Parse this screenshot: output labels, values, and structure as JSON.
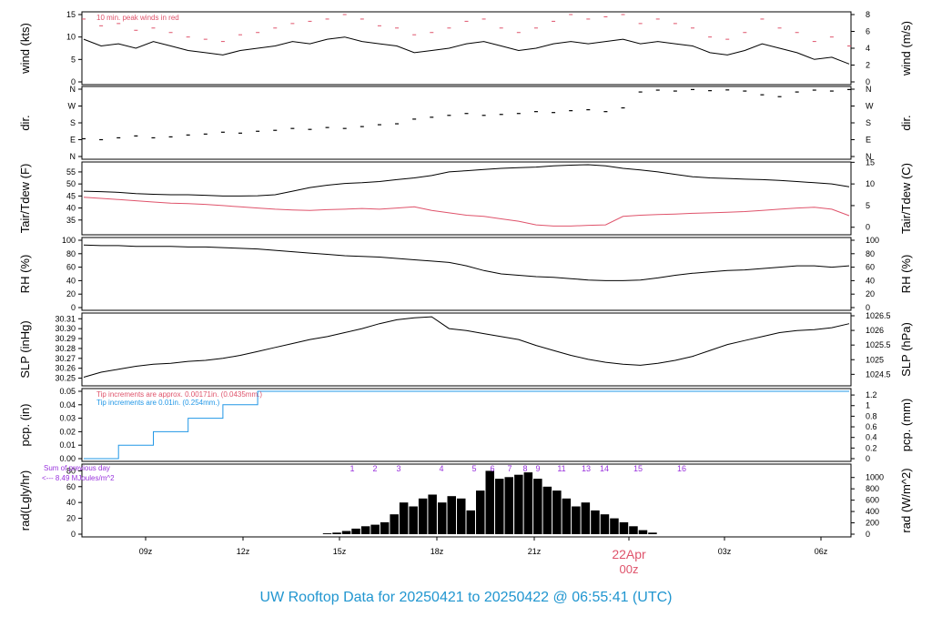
{
  "title": "UW Rooftop Data for 20250421  to  20250422 @ 06:55:41  (UTC)",
  "colors": {
    "frame": "#000000",
    "series_black": "#000000",
    "series_red": "#df536b",
    "series_blue": "#2297e6",
    "annotation_purple": "#9933dd",
    "date_marker": "#df536b",
    "title": "#2196d0"
  },
  "time_axis": {
    "tick_labels": [
      "09z",
      "12z",
      "15z",
      "18z",
      "21z",
      "00z",
      "03z",
      "06z"
    ],
    "date_label": "22Apr"
  },
  "chart_data": [
    {
      "type": "line",
      "panel": "wind",
      "ylabel": "wind (kts)",
      "y2label": "wind (m/s)",
      "ylim": [
        0,
        15
      ],
      "y_ticks": [
        "0",
        "5",
        "10",
        "15"
      ],
      "y2_ticks": [
        "0",
        "2",
        "4",
        "6",
        "8"
      ],
      "annotation": "10 min. peak winds in red",
      "series": [
        {
          "values": [
            9.5,
            8.0,
            8.5,
            7.5,
            9.0,
            8.0,
            7.0,
            6.5,
            6.0,
            7.0,
            7.5,
            8.0,
            9.0,
            8.5,
            9.5,
            10.0,
            9.0,
            8.5,
            8.0,
            6.5,
            7.0,
            7.5,
            8.5,
            9.0,
            8.0,
            7.0,
            7.5,
            8.5,
            9.0,
            8.5,
            9.0,
            9.5,
            8.5,
            9.0,
            8.5,
            8.0,
            6.5,
            6.0,
            7.0,
            8.5,
            7.5,
            6.5,
            5.0,
            5.5,
            4.0
          ]
        },
        {
          "values": [
            14,
            12.5,
            13,
            11.5,
            12,
            11,
            10,
            9.5,
            9,
            10.5,
            11,
            12,
            13,
            13.5,
            14,
            15,
            14,
            12.5,
            12,
            10.5,
            11,
            12,
            13.5,
            14,
            12,
            11,
            12,
            13.5,
            15,
            14,
            14.5,
            15,
            13,
            14,
            13,
            12,
            10,
            9.5,
            11,
            14,
            12,
            11,
            9,
            10,
            8
          ]
        }
      ]
    },
    {
      "type": "scatter",
      "panel": "direction",
      "ylabel": "dir.",
      "y2label": "dir.",
      "y_ticks": [
        "N",
        "E",
        "S",
        "W",
        "N"
      ],
      "series": [
        {
          "values": [
            95,
            90,
            100,
            110,
            100,
            105,
            115,
            120,
            130,
            125,
            135,
            140,
            150,
            145,
            155,
            150,
            160,
            170,
            175,
            200,
            210,
            220,
            230,
            220,
            225,
            230,
            240,
            235,
            245,
            250,
            240,
            260,
            345,
            355,
            350,
            358,
            352,
            356,
            350,
            330,
            320,
            345,
            355,
            350,
            358
          ]
        }
      ]
    },
    {
      "type": "line",
      "panel": "temperature",
      "ylabel": "Tair/Tdew (F)",
      "y2label": "Tair/Tdew (C)",
      "ylim": [
        30,
        58
      ],
      "y_ticks": [
        "35",
        "40",
        "45",
        "50",
        "55"
      ],
      "y2_ticks": [
        "0",
        "5",
        "10",
        "15"
      ],
      "series": [
        {
          "values": [
            47.0,
            46.8,
            46.5,
            46.0,
            45.7,
            45.5,
            45.5,
            45.3,
            45.0,
            45.0,
            45.1,
            45.5,
            47.0,
            48.5,
            49.5,
            50.2,
            50.5,
            51.0,
            51.8,
            52.5,
            53.5,
            55.0,
            55.5,
            56.0,
            56.5,
            56.8,
            57.0,
            57.5,
            57.8,
            58.0,
            57.5,
            56.5,
            55.8,
            55.0,
            54.0,
            53.0,
            52.5,
            52.3,
            52.0,
            51.8,
            51.5,
            51.0,
            50.5,
            50.0,
            48.8
          ]
        },
        {
          "values": [
            44.5,
            44.0,
            43.5,
            43.0,
            42.5,
            42.0,
            41.8,
            41.5,
            41.0,
            40.5,
            40.0,
            39.5,
            39.2,
            39.0,
            39.3,
            39.5,
            39.8,
            39.5,
            40.0,
            40.5,
            39.0,
            38.0,
            37.0,
            36.5,
            35.5,
            34.5,
            33.0,
            32.5,
            32.5,
            32.8,
            33.0,
            36.5,
            37.0,
            37.3,
            37.5,
            37.8,
            38.0,
            38.2,
            38.5,
            39.0,
            39.5,
            40.0,
            40.3,
            39.5,
            36.8
          ]
        }
      ]
    },
    {
      "type": "line",
      "panel": "relative_humidity",
      "ylabel": "RH (%)",
      "y2label": "RH (%)",
      "ylim": [
        0,
        100
      ],
      "y_ticks": [
        "0",
        "20",
        "40",
        "60",
        "80",
        "100"
      ],
      "series": [
        {
          "values": [
            93,
            92,
            92,
            91,
            91,
            91,
            90,
            90,
            89,
            88,
            87,
            85,
            83,
            81,
            79,
            77,
            76,
            75,
            73,
            71,
            69,
            67,
            62,
            55,
            50,
            48,
            46,
            45,
            43,
            41,
            40,
            40,
            41,
            44,
            48,
            51,
            53,
            55,
            56,
            58,
            60,
            62,
            62,
            60,
            62
          ]
        }
      ]
    },
    {
      "type": "line",
      "panel": "sea_level_pressure",
      "ylabel": "SLP (inHg)",
      "y2label": "SLP (hPa)",
      "ylim": [
        30.245,
        30.313
      ],
      "y_ticks": [
        "30.25",
        "30.26",
        "30.27",
        "30.28",
        "30.29",
        "30.30",
        "30.31"
      ],
      "y2_ticks": [
        "1024.5",
        "1025",
        "1025.5",
        "1026",
        "1026.5"
      ],
      "series": [
        {
          "values": [
            30.251,
            30.256,
            30.259,
            30.262,
            30.264,
            30.265,
            30.267,
            30.268,
            30.27,
            30.273,
            30.277,
            30.281,
            30.285,
            30.289,
            30.292,
            30.296,
            30.3,
            30.305,
            30.309,
            30.311,
            30.312,
            30.3,
            30.298,
            30.295,
            30.292,
            30.289,
            30.283,
            30.278,
            30.273,
            30.269,
            30.266,
            30.264,
            30.263,
            30.265,
            30.268,
            30.272,
            30.278,
            30.284,
            30.288,
            30.292,
            30.296,
            30.298,
            30.299,
            30.301,
            30.305
          ]
        }
      ]
    },
    {
      "type": "line",
      "panel": "precipitation",
      "ylabel": "pcp. (in)",
      "y2label": "pcp. (mm)",
      "ylim": [
        0,
        0.05
      ],
      "y_ticks": [
        "0.00",
        "0.01",
        "0.02",
        "0.03",
        "0.04",
        "0.05"
      ],
      "y2_ticks": [
        "0",
        "0.2",
        "0.4",
        "0.6",
        "0.8",
        "1",
        "1.2"
      ],
      "annotations": [
        "Tip increments are approx. 0.00171in. (0.0435mm.)",
        "Tip increments are 0.01in. (0.254mm.)"
      ],
      "series": [
        {
          "values": [
            0.0,
            0.0,
            0.01,
            0.01,
            0.02,
            0.02,
            0.03,
            0.03,
            0.04,
            0.04,
            0.05,
            0.05,
            0.05,
            0.05,
            0.05,
            0.05,
            0.05,
            0.05,
            0.05,
            0.05,
            0.05,
            0.05,
            0.05,
            0.05,
            0.05,
            0.05,
            0.05,
            0.05,
            0.05,
            0.05,
            0.05,
            0.05,
            0.05,
            0.05,
            0.05,
            0.05,
            0.05,
            0.05,
            0.05,
            0.05,
            0.05,
            0.05,
            0.05,
            0.05,
            0.05
          ]
        }
      ]
    },
    {
      "type": "bar",
      "panel": "radiation",
      "ylabel": "rad(Lgly/hr)",
      "y2label": "rad (W/m^2)",
      "ylim": [
        0,
        85
      ],
      "y_ticks": [
        "0",
        "20",
        "40",
        "60",
        "80"
      ],
      "y2_ticks": [
        "0",
        "200",
        "400",
        "600",
        "800",
        "1000"
      ],
      "annotations": [
        "Sum of previous day",
        "<--- 8.49 MJoules/m^2"
      ],
      "marker_labels": [
        "1",
        "2",
        "3",
        "4",
        "5",
        "6",
        "7",
        "8",
        "9",
        "11",
        "13",
        "14",
        "15",
        "16"
      ],
      "series": [
        {
          "values": [
            0,
            0,
            0,
            0,
            0,
            0,
            0,
            0,
            0,
            0,
            0,
            0,
            0,
            0,
            0,
            0,
            0,
            0,
            0,
            0,
            0,
            0,
            0,
            0,
            0,
            1,
            2,
            4,
            7,
            10,
            12,
            15,
            25,
            40,
            35,
            45,
            50,
            40,
            48,
            45,
            30,
            55,
            80,
            70,
            72,
            75,
            78,
            70,
            60,
            55,
            45,
            35,
            40,
            30,
            25,
            20,
            15,
            10,
            5,
            2,
            0,
            0,
            0,
            0,
            0,
            0,
            0,
            0,
            0,
            0,
            0,
            0,
            0,
            0,
            0,
            0,
            0,
            0,
            0,
            0
          ]
        }
      ]
    }
  ]
}
